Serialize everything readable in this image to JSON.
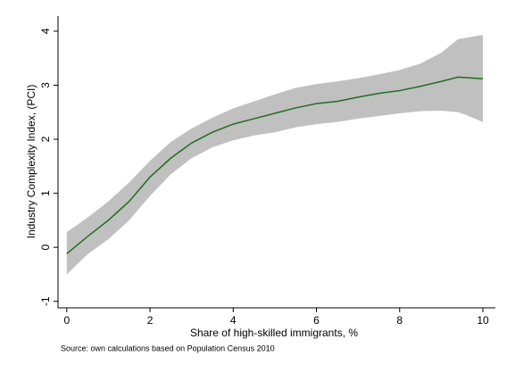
{
  "chart_data": {
    "type": "line",
    "x_label": "Share of high-skilled immigrants, %",
    "y_label": "Industry Complexity Index, (PCI)",
    "source": "Source: own calculations based on Population Census 2010",
    "x": [
      0,
      0.5,
      1,
      1.5,
      2,
      2.5,
      3,
      3.5,
      4,
      4.5,
      5,
      5.5,
      6,
      6.5,
      7,
      7.5,
      8,
      8.5,
      9,
      9.4,
      9.6,
      10
    ],
    "line": {
      "color": "#1f6e1f",
      "values": [
        -0.12,
        0.2,
        0.5,
        0.85,
        1.3,
        1.65,
        1.93,
        2.13,
        2.28,
        2.38,
        2.48,
        2.58,
        2.66,
        2.7,
        2.78,
        2.85,
        2.9,
        2.98,
        3.07,
        3.15,
        3.14,
        3.12
      ]
    },
    "band": {
      "color": "#c0c0c0",
      "upper": [
        0.28,
        0.55,
        0.85,
        1.2,
        1.6,
        1.95,
        2.2,
        2.4,
        2.57,
        2.7,
        2.83,
        2.95,
        3.02,
        3.07,
        3.13,
        3.2,
        3.28,
        3.4,
        3.6,
        3.85,
        3.88,
        3.93
      ],
      "lower": [
        -0.5,
        -0.13,
        0.15,
        0.5,
        0.95,
        1.35,
        1.65,
        1.85,
        1.98,
        2.07,
        2.13,
        2.22,
        2.28,
        2.32,
        2.38,
        2.43,
        2.48,
        2.52,
        2.53,
        2.5,
        2.45,
        2.32
      ]
    },
    "xlim": [
      -0.21,
      10.3
    ],
    "ylim": [
      -1.12,
      4.28
    ],
    "xticks": [
      0,
      2,
      4,
      6,
      8,
      10
    ],
    "yticks": [
      -1,
      0,
      1,
      2,
      3,
      4
    ]
  }
}
